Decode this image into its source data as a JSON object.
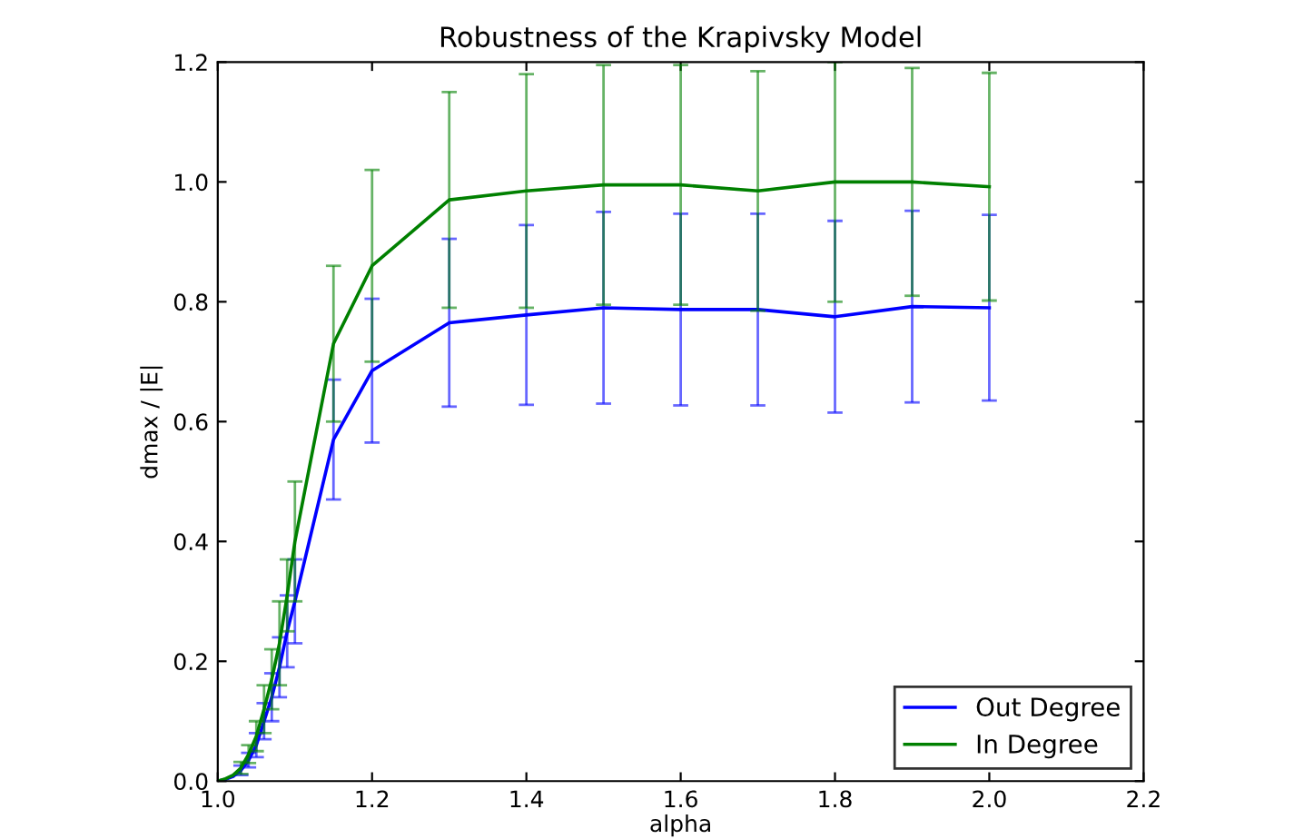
{
  "chart_data": {
    "type": "line",
    "title": "Robustness of the Krapivsky Model",
    "xlabel": "alpha",
    "ylabel": "dmax / |E|",
    "x": [
      1.0,
      1.01,
      1.02,
      1.03,
      1.04,
      1.05,
      1.06,
      1.07,
      1.08,
      1.09,
      1.1,
      1.15,
      1.2,
      1.3,
      1.4,
      1.5,
      1.6,
      1.7,
      1.8,
      1.9,
      2.0
    ],
    "series": [
      {
        "name": "Out Degree",
        "color": "#0000ff",
        "values": [
          0.0,
          0.003,
          0.008,
          0.018,
          0.035,
          0.06,
          0.1,
          0.14,
          0.19,
          0.25,
          0.3,
          0.57,
          0.685,
          0.765,
          0.778,
          0.79,
          0.787,
          0.787,
          0.775,
          0.792,
          0.79
        ],
        "errors": [
          null,
          null,
          null,
          0.008,
          0.012,
          0.02,
          0.03,
          0.04,
          0.05,
          0.06,
          0.07,
          0.1,
          0.12,
          0.14,
          0.15,
          0.16,
          0.16,
          0.16,
          0.16,
          0.16,
          0.155
        ]
      },
      {
        "name": "In Degree",
        "color": "#008000",
        "values": [
          0.0,
          0.004,
          0.01,
          0.022,
          0.045,
          0.075,
          0.12,
          0.17,
          0.23,
          0.31,
          0.4,
          0.73,
          0.86,
          0.97,
          0.985,
          0.995,
          0.995,
          0.985,
          1.0,
          1.0,
          0.992
        ],
        "errors": [
          null,
          null,
          null,
          0.01,
          0.015,
          0.025,
          0.04,
          0.05,
          0.07,
          0.06,
          0.1,
          0.13,
          0.16,
          0.18,
          0.195,
          0.2,
          0.2,
          0.2,
          0.2,
          0.19,
          0.19
        ]
      }
    ],
    "xlim": [
      1.0,
      2.2
    ],
    "ylim": [
      0.0,
      1.2
    ],
    "xticks": [
      {
        "value": 1.0,
        "label": "1.0"
      },
      1.2,
      1.4,
      1.6,
      1.8,
      {
        "value": 2.0,
        "label": "2.0"
      },
      2.2
    ],
    "yticks": [
      {
        "value": 0.0,
        "label": "0.0"
      },
      0.2,
      0.4,
      0.6,
      0.8,
      {
        "value": 1.0,
        "label": "1.0"
      },
      1.2
    ],
    "legend": "bottom right",
    "grid": false
  }
}
